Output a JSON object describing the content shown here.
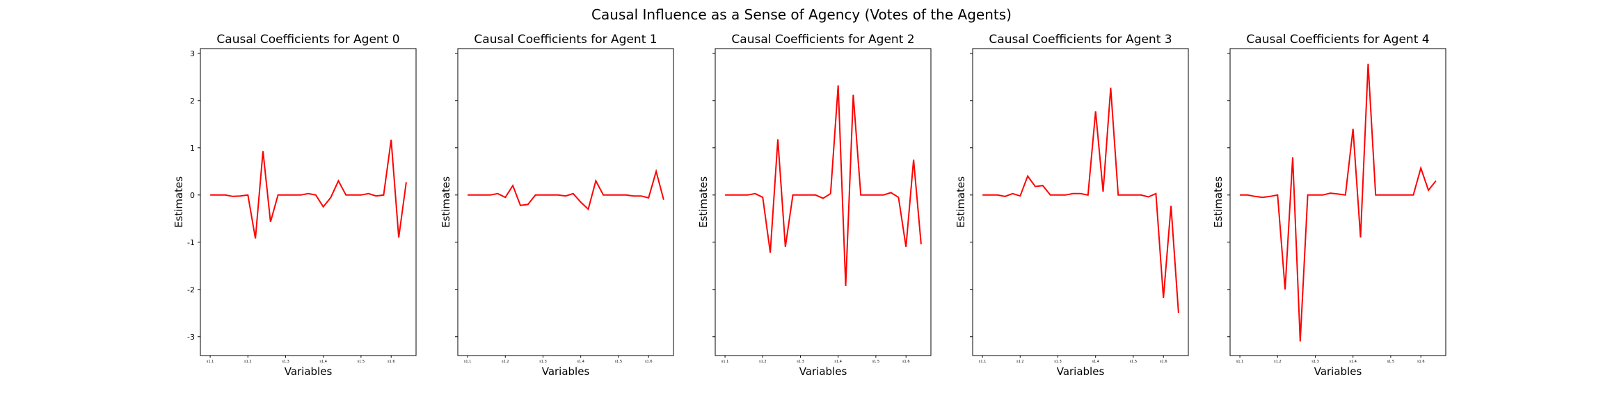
{
  "figure": {
    "suptitle": "Causal Influence as a Sense of Agency (Votes of the Agents)"
  },
  "chart_data": [
    {
      "type": "line",
      "title": "Causal Coefficients for Agent 0",
      "xlabel": "Variables",
      "ylabel": "Estimates",
      "ylim": [
        -3.4,
        3.1
      ],
      "yticks": [
        -3,
        -2,
        -1,
        0,
        1,
        2,
        3
      ],
      "xtick_labels": [
        "s1.1",
        "s1.2",
        "s1.3",
        "s1.4",
        "s1.5",
        "s1.6"
      ],
      "xtick_index": [
        0,
        5,
        10,
        15,
        20,
        24
      ],
      "grid": false,
      "color": "#ff0000",
      "values": [
        0,
        0,
        0,
        -0.03,
        -0.02,
        0,
        -0.92,
        0.93,
        -0.57,
        0,
        0,
        0,
        0,
        0.03,
        0,
        -0.25,
        -0.05,
        0.3,
        0,
        0,
        0,
        0.03,
        -0.02,
        0,
        1.17,
        -0.9,
        0.27
      ]
    },
    {
      "type": "line",
      "title": "Causal Coefficients for Agent 1",
      "xlabel": "Variables",
      "ylabel": "Estimates",
      "ylim": [
        -3.4,
        3.1
      ],
      "yticks": [
        -3,
        -2,
        -1,
        0,
        1,
        2,
        3
      ],
      "xtick_labels": [
        "s1.1",
        "s1.2",
        "s1.3",
        "s1.4",
        "s1.5",
        "s1.6"
      ],
      "xtick_index": [
        0,
        5,
        10,
        15,
        20,
        24
      ],
      "grid": false,
      "color": "#ff0000",
      "values": [
        0,
        0,
        0,
        0,
        0.03,
        -0.05,
        0.2,
        -0.22,
        -0.2,
        0,
        0,
        0,
        0,
        -0.02,
        0.03,
        -0.15,
        -0.3,
        0.3,
        0,
        0,
        0,
        0,
        -0.02,
        -0.02,
        -0.06,
        0.5,
        -0.1
      ]
    },
    {
      "type": "line",
      "title": "Causal Coefficients for Agent 2",
      "xlabel": "Variables",
      "ylabel": "Estimates",
      "ylim": [
        -3.4,
        3.1
      ],
      "yticks": [
        -3,
        -2,
        -1,
        0,
        1,
        2,
        3
      ],
      "xtick_labels": [
        "s1.1",
        "s1.2",
        "s1.3",
        "s1.4",
        "s1.5",
        "s1.6"
      ],
      "xtick_index": [
        0,
        5,
        10,
        15,
        20,
        24
      ],
      "grid": false,
      "color": "#ff0000",
      "values": [
        0,
        0,
        0,
        0,
        0.03,
        -0.05,
        -1.22,
        1.18,
        -1.1,
        0,
        0,
        0,
        0,
        -0.07,
        0.03,
        2.32,
        -1.93,
        2.12,
        0,
        0,
        0,
        0,
        0.05,
        -0.05,
        -1.1,
        0.75,
        -1.04
      ]
    },
    {
      "type": "line",
      "title": "Causal Coefficients for Agent 3",
      "xlabel": "Variables",
      "ylabel": "Estimates",
      "ylim": [
        -3.4,
        3.1
      ],
      "yticks": [
        -3,
        -2,
        -1,
        0,
        1,
        2,
        3
      ],
      "xtick_labels": [
        "s1.1",
        "s1.2",
        "s1.3",
        "s1.4",
        "s1.5",
        "s1.6"
      ],
      "xtick_index": [
        0,
        5,
        10,
        15,
        20,
        24
      ],
      "grid": false,
      "color": "#ff0000",
      "values": [
        0,
        0,
        0,
        -0.03,
        0.03,
        -0.02,
        0.4,
        0.18,
        0.2,
        0,
        0,
        0,
        0.03,
        0.03,
        0,
        1.77,
        0.07,
        2.27,
        0,
        0,
        0,
        0,
        -0.04,
        0.03,
        -2.18,
        -0.23,
        -2.5
      ]
    },
    {
      "type": "line",
      "title": "Causal Coefficients for Agent 4",
      "xlabel": "Variables",
      "ylabel": "Estimates",
      "ylim": [
        -3.4,
        3.1
      ],
      "yticks": [
        -3,
        -2,
        -1,
        0,
        1,
        2,
        3
      ],
      "xtick_labels": [
        "s1.1",
        "s1.2",
        "s1.3",
        "s1.4",
        "s1.5",
        "s1.6"
      ],
      "xtick_index": [
        0,
        5,
        10,
        15,
        20,
        24
      ],
      "grid": false,
      "color": "#ff0000",
      "values": [
        0,
        0,
        -0.03,
        -0.05,
        -0.03,
        0,
        -2,
        0.8,
        -3.1,
        0,
        0,
        0,
        0.04,
        0.02,
        0,
        1.4,
        -0.9,
        2.78,
        0,
        0,
        0,
        0,
        0,
        0,
        0.57,
        0.1,
        0.3
      ]
    }
  ]
}
